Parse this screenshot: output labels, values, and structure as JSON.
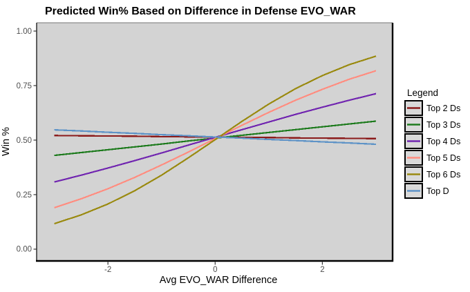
{
  "chart_data": {
    "type": "line",
    "title": "Predicted Win% Based on Difference in Defense EVO_WAR",
    "xlabel": "Avg EVO_WAR Difference",
    "ylabel": "Win %",
    "legend_title": "Legend",
    "legend_position": "right",
    "grid": false,
    "panel_bg": "#d3d3d3",
    "legend_key_bg": "#d9d9d9",
    "xlim": [
      -3.33,
      3.31
    ],
    "ylim": [
      -0.054,
      1.038
    ],
    "x_ticks": {
      "values": [
        -2,
        0,
        2
      ],
      "labels": [
        "-2",
        "0",
        "2"
      ]
    },
    "y_ticks": {
      "values": [
        0,
        0.25,
        0.5,
        0.75,
        1.0
      ],
      "labels": [
        "0.00",
        "0.25",
        "0.50",
        "0.75",
        "1.00"
      ]
    },
    "x": [
      -3,
      -2.5,
      -2,
      -1.5,
      -1,
      -0.5,
      0,
      0.5,
      1,
      1.5,
      2,
      2.5,
      3
    ],
    "series": [
      {
        "name": "Top 2 Ds",
        "color": "#8b1a1a",
        "values": [
          0.521,
          0.52,
          0.519,
          0.518,
          0.516,
          0.515,
          0.514,
          0.513,
          0.512,
          0.51,
          0.509,
          0.508,
          0.507
        ]
      },
      {
        "name": "Top 3 Ds",
        "color": "#1e7b1e",
        "values": [
          0.43,
          0.443,
          0.456,
          0.469,
          0.482,
          0.496,
          0.509,
          0.522,
          0.535,
          0.548,
          0.561,
          0.574,
          0.587
        ]
      },
      {
        "name": "Top 4 Ds",
        "color": "#7126b0",
        "values": [
          0.308,
          0.339,
          0.372,
          0.406,
          0.441,
          0.477,
          0.513,
          0.548,
          0.583,
          0.618,
          0.651,
          0.683,
          0.713
        ]
      },
      {
        "name": "Top 5 Ds",
        "color": "#ff8d80",
        "values": [
          0.19,
          0.231,
          0.277,
          0.329,
          0.386,
          0.445,
          0.507,
          0.568,
          0.627,
          0.683,
          0.733,
          0.779,
          0.818
        ]
      },
      {
        "name": "Top 6 Ds",
        "color": "#9a8a10",
        "values": [
          0.117,
          0.157,
          0.207,
          0.268,
          0.339,
          0.419,
          0.502,
          0.586,
          0.665,
          0.736,
          0.796,
          0.846,
          0.885
        ]
      },
      {
        "name": "Top D",
        "color": "#5e93c7",
        "values": [
          0.547,
          0.542,
          0.536,
          0.531,
          0.525,
          0.52,
          0.514,
          0.509,
          0.503,
          0.498,
          0.492,
          0.487,
          0.481
        ]
      }
    ]
  }
}
